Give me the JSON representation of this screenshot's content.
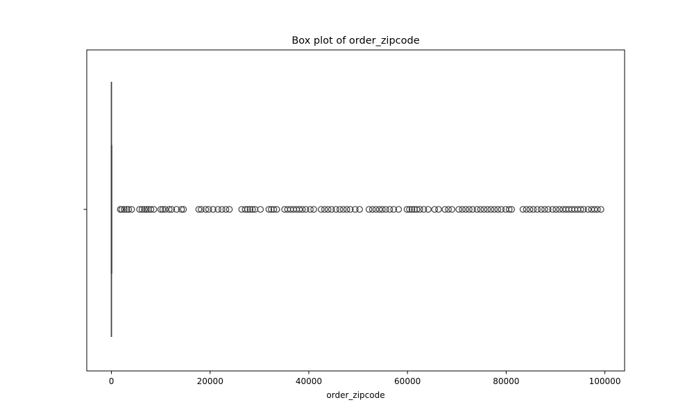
{
  "chart_data": {
    "type": "box",
    "title": "Box plot of order_zipcode",
    "xlabel": "order_zipcode",
    "ylabel": "",
    "orientation": "horizontal",
    "xlim": [
      -5000,
      104000
    ],
    "xticks": [
      0,
      20000,
      40000,
      60000,
      80000,
      100000
    ],
    "xtick_labels": [
      "0",
      "20000",
      "40000",
      "60000",
      "80000",
      "100000"
    ],
    "grid": false,
    "legend": "none",
    "box": {
      "min": 0,
      "q1": 0,
      "median": 0,
      "q3": 0,
      "max": 0
    },
    "outliers": [
      1800,
      2100,
      2600,
      3100,
      3500,
      4100,
      5700,
      6200,
      6700,
      7100,
      7500,
      8000,
      8600,
      10000,
      10400,
      10900,
      11700,
      12200,
      13200,
      14200,
      14600,
      17700,
      18200,
      19100,
      19700,
      20600,
      21600,
      22400,
      23200,
      23900,
      26400,
      27100,
      27600,
      28100,
      28600,
      29100,
      30200,
      31900,
      32400,
      32900,
      33500,
      35100,
      35700,
      36300,
      36900,
      37500,
      38100,
      38700,
      39400,
      40300,
      41000,
      42500,
      43200,
      43900,
      44600,
      45500,
      46300,
      47000,
      47700,
      48400,
      49400,
      50300,
      52200,
      52900,
      53600,
      54300,
      54900,
      55600,
      56400,
      57200,
      58200,
      59900,
      60400,
      60900,
      61400,
      61900,
      62500,
      63300,
      64200,
      65500,
      66300,
      67600,
      68300,
      69000,
      70400,
      71100,
      71800,
      72500,
      73200,
      74100,
      74800,
      75500,
      76200,
      76900,
      77600,
      78300,
      79000,
      79900,
      80600,
      81100,
      83400,
      84100,
      84800,
      85500,
      86300,
      87100,
      87800,
      88500,
      89400,
      90100,
      90800,
      91500,
      92100,
      92700,
      93300,
      93900,
      94500,
      95100,
      95700,
      96600,
      97300,
      97900,
      98500,
      99200
    ],
    "colors": {
      "box_line": "#3f3f3f",
      "flier_edge": "#3f3f3f"
    }
  }
}
